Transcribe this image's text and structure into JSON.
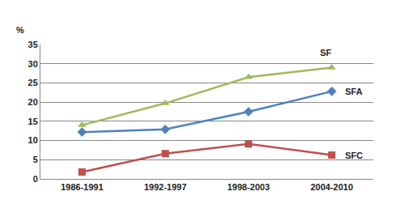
{
  "chart_data": {
    "type": "line",
    "y_label": "%",
    "categories": [
      "1986-1991",
      "1992-1997",
      "1998-2003",
      "2004-2010"
    ],
    "series": [
      {
        "name": "SF",
        "color": "#9bbb59",
        "marker": "triangle-up",
        "values": [
          14.0,
          19.7,
          26.5,
          29.0
        ]
      },
      {
        "name": "SFA",
        "color": "#4f81bd",
        "marker": "diamond",
        "values": [
          12.2,
          12.9,
          17.5,
          22.8
        ]
      },
      {
        "name": "SFC",
        "color": "#c0504d",
        "marker": "square",
        "values": [
          1.8,
          6.6,
          9.1,
          6.2
        ]
      }
    ],
    "ylim": [
      0,
      35
    ],
    "yticks": [
      0,
      5,
      10,
      15,
      20,
      25,
      30,
      35
    ],
    "grid": true
  }
}
